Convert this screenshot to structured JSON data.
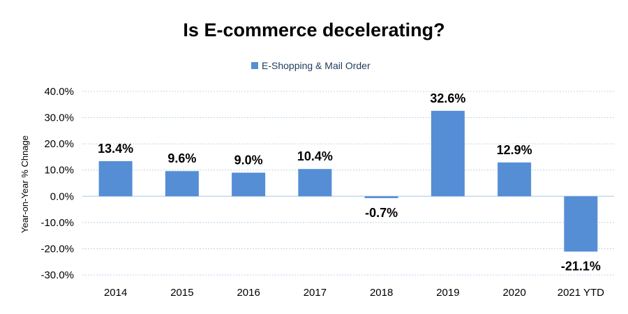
{
  "chart_data": {
    "type": "bar",
    "title": "Is E-commerce decelerating?",
    "ylabel": "Year-on-Year % Chnage",
    "xlabel": "",
    "categories": [
      "2014",
      "2015",
      "2016",
      "2017",
      "2018",
      "2019",
      "2020",
      "2021 YTD"
    ],
    "series": [
      {
        "name": "E-Shopping & Mail Order",
        "values": [
          13.4,
          9.6,
          9.0,
          10.4,
          -0.7,
          32.6,
          12.9,
          -21.1
        ],
        "labels": [
          "13.4%",
          "9.6%",
          "9.0%",
          "10.4%",
          "-0.7%",
          "32.6%",
          "12.9%",
          "-21.1%"
        ],
        "color": "#558ed5"
      }
    ],
    "ylim": [
      -30,
      40
    ],
    "yticks": [
      40,
      30,
      20,
      10,
      0,
      -10,
      -20,
      -30
    ],
    "ytick_labels": [
      "40.0%",
      "30.0%",
      "20.0%",
      "10.0%",
      "0.0%",
      "-10.0%",
      "-20.0%",
      "-30.0%"
    ],
    "grid": true,
    "legend_position": "top-center"
  }
}
